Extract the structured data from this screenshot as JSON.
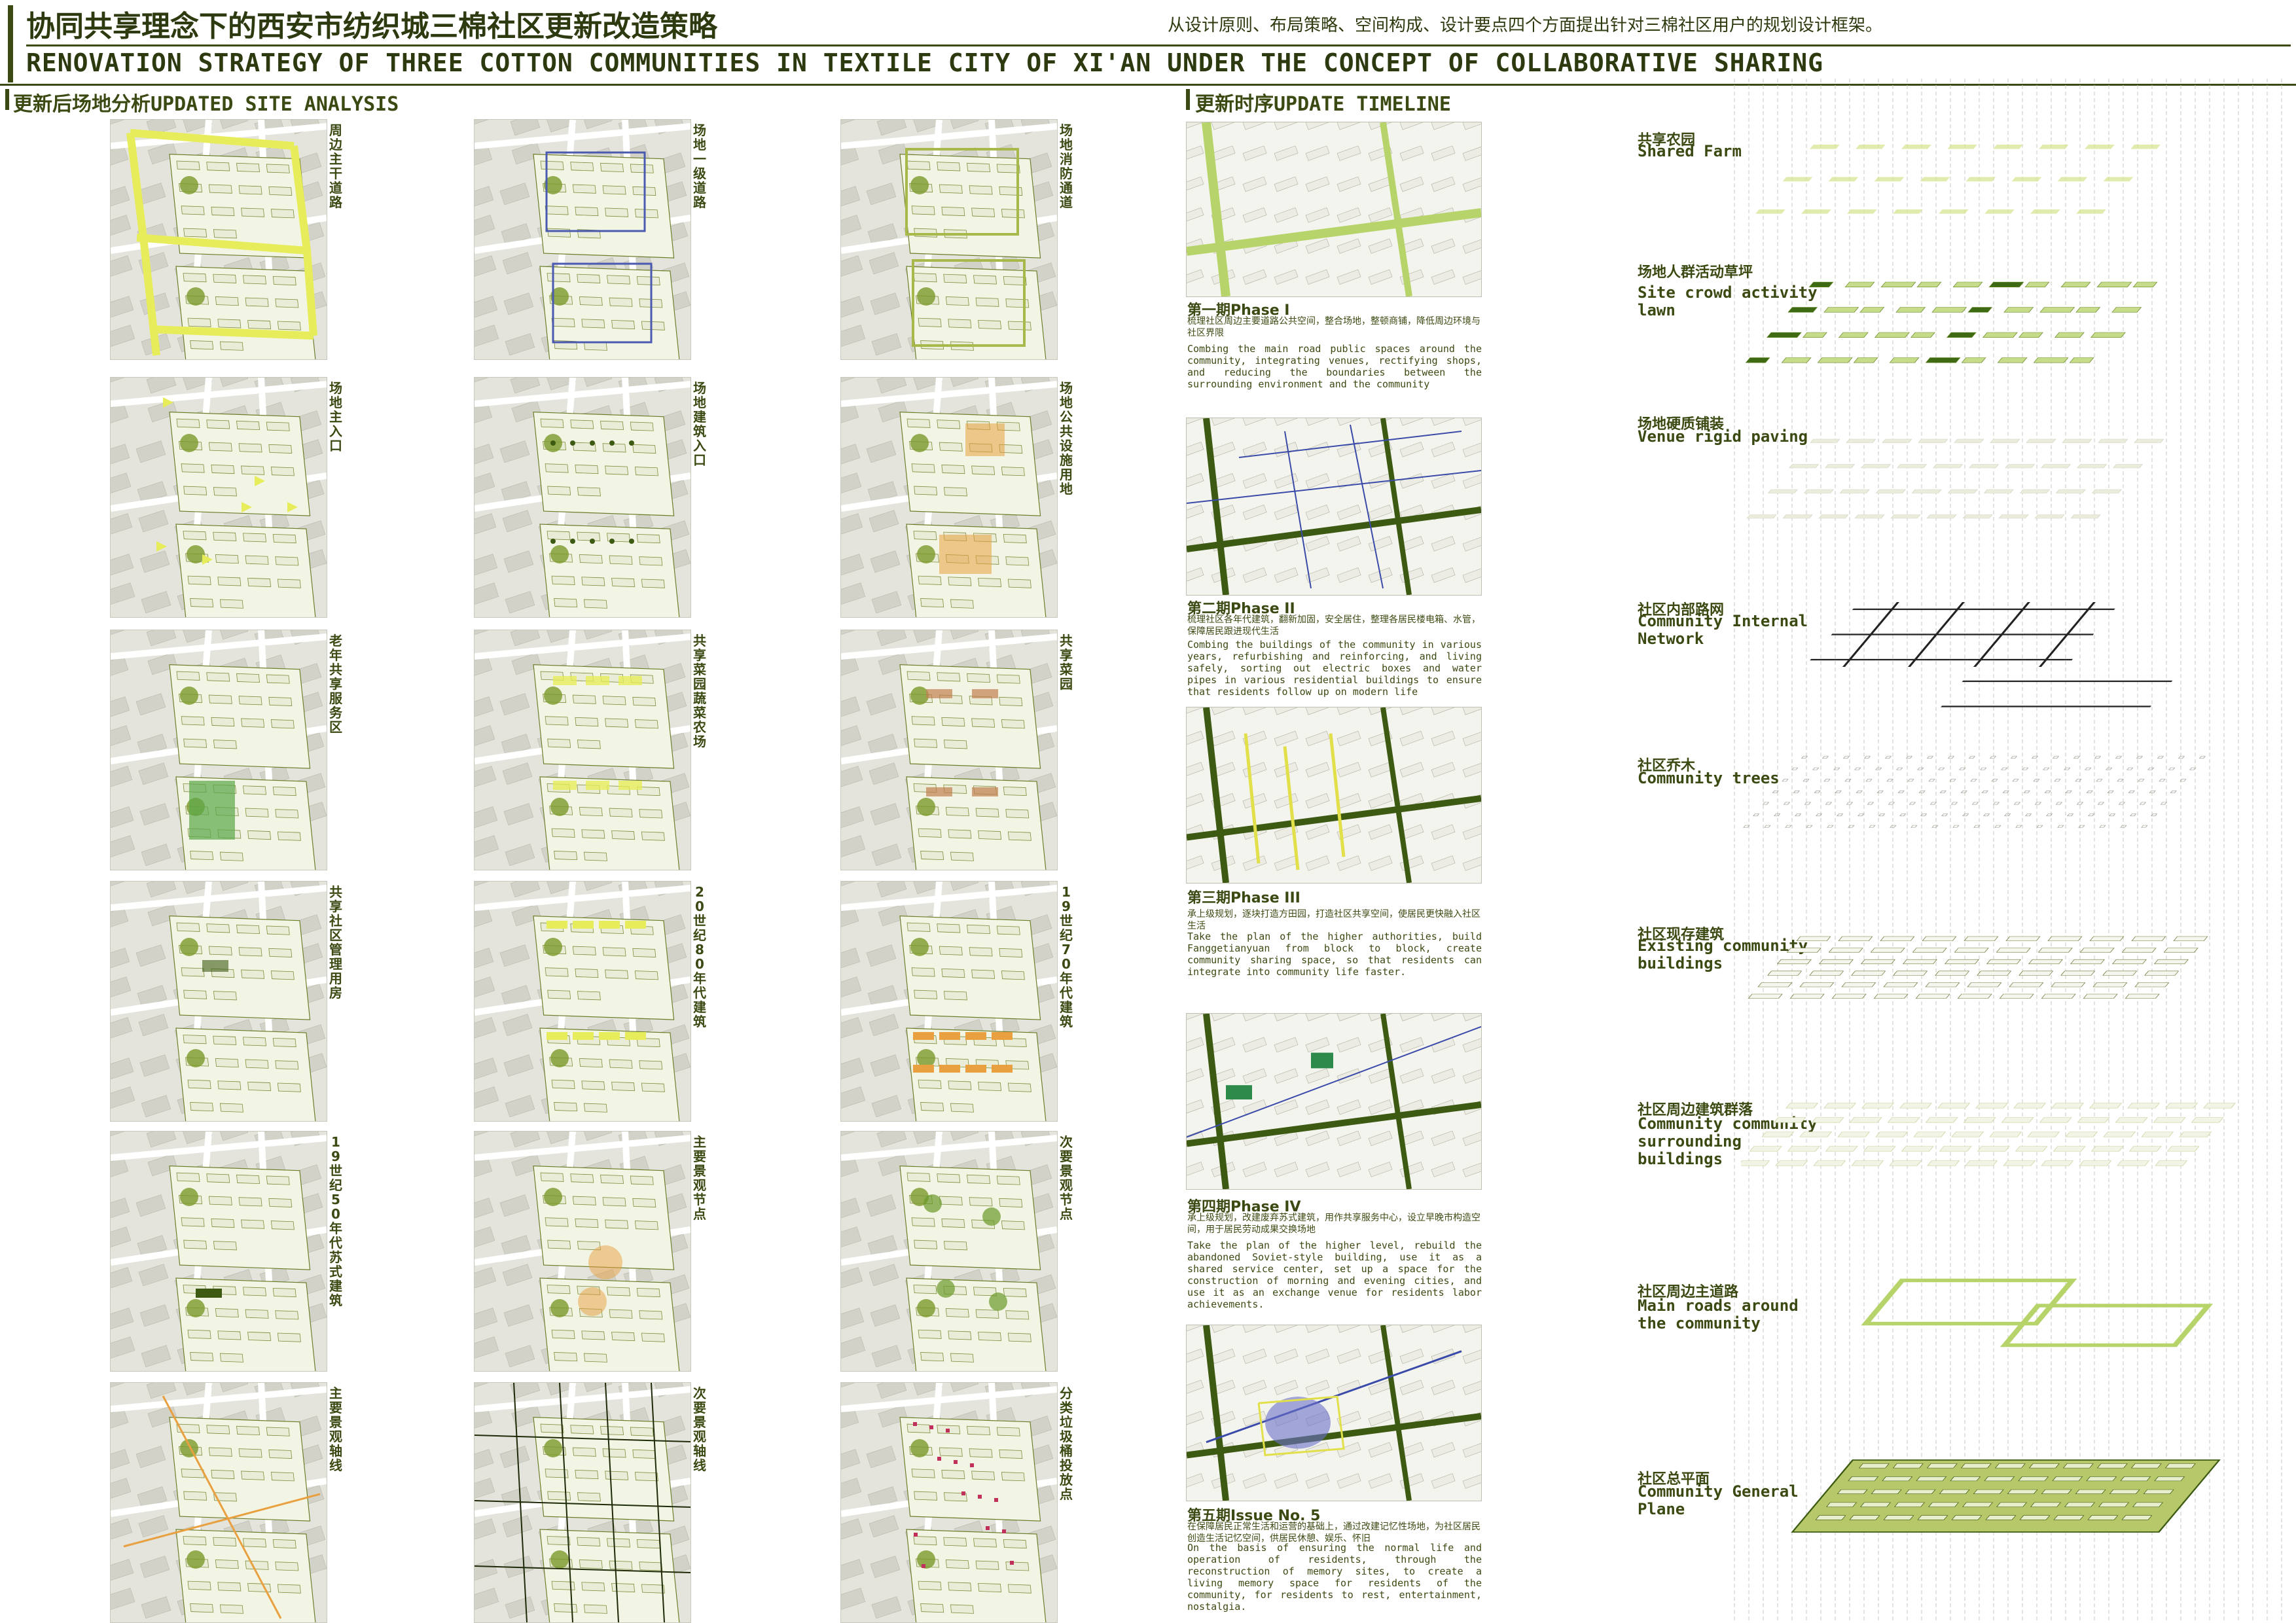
{
  "header": {
    "title_cn": "协同共享理念下的西安市纺织城三棉社区更新改造策略",
    "subtitle_cn": "从设计原则、布局策略、空间构成、设计要点四个方面提出针对三棉社区用户的规划设计框架。",
    "title_en": "RENOVATION STRATEGY OF THREE COTTON COMMUNITIES IN TEXTILE CITY OF XI'AN UNDER THE CONCEPT OF COLLABORATIVE SHARING"
  },
  "site_analysis": {
    "heading": "更新后场地分析UPDATED SITE ANALYSIS",
    "maps": [
      {
        "label": "周边主干道路"
      },
      {
        "label": "场地一级道路"
      },
      {
        "label": "场地消防通道"
      },
      {
        "label": "场地主入口"
      },
      {
        "label": "场地建筑入口"
      },
      {
        "label": "场地公共设施用地"
      },
      {
        "label": "老年共享服务区"
      },
      {
        "label": "共享菜园蔬菜农场"
      },
      {
        "label": "共享菜园"
      },
      {
        "label": "共享社区管理用房"
      },
      {
        "label": "20世纪80年代建筑"
      },
      {
        "label": "19世纪70年代建筑"
      },
      {
        "label": "19世纪50年代苏式建筑"
      },
      {
        "label": "主要景观节点"
      },
      {
        "label": "次要景观节点"
      },
      {
        "label": "主要景观轴线"
      },
      {
        "label": "次要景观轴线"
      },
      {
        "label": "分类垃圾桶投放点"
      }
    ]
  },
  "timeline": {
    "heading": "更新时序UPDATE TIMELINE",
    "phases": [
      {
        "title": "第一期Phase I",
        "cn": "梳理社区周边主要道路公共空间，整合场地，整顿商铺，降低周边环境与社区界限",
        "en": "Combing the main road public spaces around the community, integrating venues, rectifying shops, and reducing the boundaries between the surrounding environment and the community"
      },
      {
        "title": "第二期Phase II",
        "cn": "梳理社区各年代建筑，翻新加固，安全居住，整理各居民楼电箱、水管，保障居民跟进现代生活",
        "en": "Combing the buildings of the community in various years, refurbishing and reinforcing, and living safely, sorting out electric boxes and water pipes in various residential buildings to ensure that residents follow up on modern life"
      },
      {
        "title": "第三期Phase III",
        "cn": "承上级规划，逐块打造方田园，打造社区共享空间，使居民更快融入社区生活",
        "en": "Take the plan of the higher authorities, build Fanggetianyuan from block to block, create community sharing space, so that residents can integrate into community life faster."
      },
      {
        "title": "第四期Phase IV",
        "cn": "承上级规划，改建废弃苏式建筑，用作共享服务中心，设立早晚市构造空间，用于居民劳动成果交换场地",
        "en": "Take the plan of the higher level, rebuild the abandoned Soviet-style building, use it as a shared service center, set up a space for the construction of morning and evening cities, and use it as an exchange venue for residents labor achievements."
      },
      {
        "title": "第五期Issue No. 5",
        "cn": "在保障居民正常生活和运营的基础上，通过改建记忆性场地，为社区居民创造生活记忆空间，供居民休憩、娱乐、怀旧",
        "en": "On the basis of ensuring the normal life and operation of residents, through the reconstruction of memory sites, to create a living memory space for residents of the community, for residents to rest, entertainment, nostalgia."
      }
    ]
  },
  "layers": [
    {
      "cn": "共享农园",
      "en": "Shared Farm"
    },
    {
      "cn": "场地人群活动草坪",
      "en": "Site crowd activity lawn"
    },
    {
      "cn": "场地硬质铺装",
      "en": "Venue rigid paving"
    },
    {
      "cn": "社区内部路网",
      "en": "Community Internal Network"
    },
    {
      "cn": "社区乔木",
      "en": "Community trees"
    },
    {
      "cn": "社区现存建筑",
      "en": "Existing community buildings"
    },
    {
      "cn": "社区周边建筑群落",
      "en": "Community community surrounding buildings"
    },
    {
      "cn": "社区周边主道路",
      "en": "Main roads around the community"
    },
    {
      "cn": "社区总平面",
      "en": "Community General Plane"
    }
  ],
  "colors": {
    "primary": "#3b4a12",
    "road_yellow": "#e6ec5a",
    "green": "#9ab84a",
    "dark_green": "#3d5a12",
    "orange": "#e8a040",
    "blue": "#4a5ab0"
  }
}
